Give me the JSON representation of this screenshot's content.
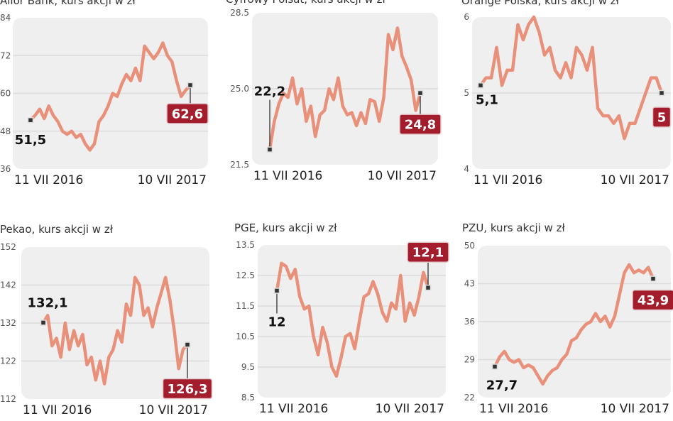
{
  "colors": {
    "line": "#e8907a",
    "end_badge": "#a31d2c",
    "panel_bg": "#efefef",
    "grid": "#dcdcdc"
  },
  "chart_data": [
    {
      "type": "line",
      "title": "Alior Bank, kurs akcji w zł",
      "yticks": [
        "84",
        "72",
        "60",
        "48",
        "36"
      ],
      "ylim": [
        36,
        84
      ],
      "x_labels": [
        "11 VII 2016",
        "10 VII 2017"
      ],
      "start_label": "51,5",
      "end_label": "62,6",
      "values": [
        51.5,
        53,
        55,
        52,
        56,
        53,
        51,
        48,
        47,
        48,
        46,
        47,
        44,
        42,
        44,
        51,
        53,
        56,
        60,
        59,
        63,
        66,
        64,
        68,
        64,
        75,
        73,
        71,
        73,
        76,
        72,
        70,
        64,
        59,
        61,
        62.6
      ]
    },
    {
      "type": "line",
      "title": "Cyfrowy Polsat, kurs akcji w zł",
      "yticks": [
        "28.5",
        "25.0",
        "21.5"
      ],
      "ylim": [
        21.5,
        28.5
      ],
      "x_labels": [
        "11 VII 2016",
        "10 VII 2017"
      ],
      "start_label": "22,2",
      "end_label": "24,8",
      "values": [
        22.2,
        23.5,
        24.3,
        24.8,
        24.6,
        25.5,
        24.3,
        25.0,
        23.5,
        24.2,
        22.8,
        23.8,
        24.0,
        25.0,
        24.5,
        25.5,
        24.2,
        23.8,
        23.9,
        23.3,
        23.9,
        23.4,
        24.5,
        24.4,
        23.5,
        24.6,
        27.5,
        26.8,
        27.8,
        26.5,
        26.0,
        25.4,
        24.0,
        24.8
      ]
    },
    {
      "type": "line",
      "title": "Orange Polska, kurs akcji w zł",
      "yticks": [
        "6",
        "5",
        "4"
      ],
      "ylim": [
        4,
        6
      ],
      "x_labels": [
        "11 VII 2016",
        "10 VII 2017"
      ],
      "start_label": "5,1",
      "end_label": "5",
      "values": [
        5.1,
        5.2,
        5.2,
        5.6,
        5.1,
        5.3,
        5.3,
        5.9,
        5.7,
        5.9,
        6.0,
        5.8,
        5.5,
        5.6,
        5.3,
        5.2,
        5.4,
        5.2,
        5.6,
        5.5,
        5.3,
        5.6,
        4.8,
        4.7,
        4.7,
        4.6,
        4.7,
        4.4,
        4.6,
        4.6,
        4.8,
        5.0,
        5.2,
        5.2,
        5.0
      ]
    },
    {
      "type": "line",
      "title": "Pekao, kurs akcji w zł",
      "yticks": [
        "152",
        "142",
        "132",
        "122",
        "112"
      ],
      "ylim": [
        112,
        152
      ],
      "x_labels": [
        "11 VII 2016",
        "10 VII 2017"
      ],
      "start_label": "132,1",
      "end_label": "126,3",
      "values": [
        132.1,
        134,
        126,
        128,
        123,
        132,
        125,
        130,
        126,
        129,
        121,
        123,
        117,
        122,
        116,
        123,
        125,
        130,
        127,
        137,
        134,
        144,
        142,
        134,
        136,
        131,
        136,
        140,
        144,
        138,
        130,
        120,
        125,
        126.3
      ]
    },
    {
      "type": "line",
      "title": "PGE,  kurs akcji w zł",
      "yticks": [
        "13.5",
        "12.5",
        "11.5",
        "10.5",
        "9.5",
        "8.5"
      ],
      "ylim": [
        8.5,
        13.5
      ],
      "x_labels": [
        "11 VII 2016",
        "10 VII 2017"
      ],
      "start_label": "12",
      "end_label": "12,1",
      "values": [
        12.0,
        12.9,
        12.8,
        12.4,
        12.7,
        11.8,
        11.4,
        11.5,
        10.5,
        9.9,
        10.8,
        10.3,
        9.5,
        9.2,
        9.8,
        10.5,
        10.6,
        10.1,
        11.0,
        11.8,
        11.9,
        12.3,
        11.9,
        11.3,
        11.0,
        11.6,
        11.4,
        12.5,
        11.0,
        11.6,
        11.2,
        11.8,
        12.6,
        12.1
      ]
    },
    {
      "type": "line",
      "title": "PZU,  kurs akcji w zł",
      "yticks": [
        "50",
        "43",
        "36",
        "29",
        "22"
      ],
      "ylim": [
        22,
        50
      ],
      "x_labels": [
        "11 VII 2016",
        "10 VII 2017"
      ],
      "start_label": "27,7",
      "end_label": "43,9",
      "values": [
        27.7,
        29.5,
        30.5,
        29,
        28.5,
        29,
        27.5,
        28,
        27.5,
        26,
        24.5,
        26,
        27,
        27.5,
        29,
        30,
        32.5,
        33,
        34.5,
        35.5,
        36,
        37.5,
        36,
        37,
        35,
        37,
        41,
        45,
        46.5,
        45,
        45.5,
        45,
        46,
        43.9
      ]
    }
  ]
}
